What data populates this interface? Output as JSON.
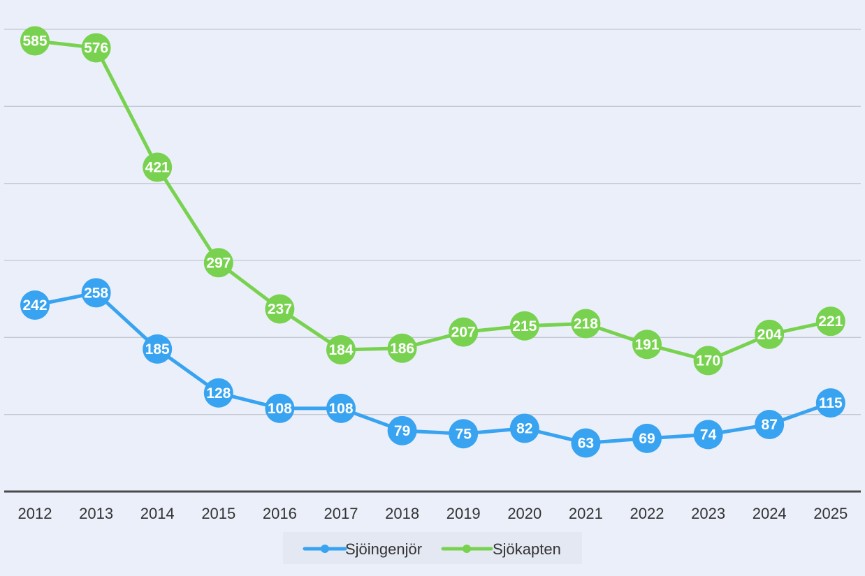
{
  "chart_data": {
    "type": "line",
    "title": "",
    "xlabel": "",
    "ylabel": "",
    "categories": [
      "2012",
      "2013",
      "2014",
      "2015",
      "2016",
      "2017",
      "2018",
      "2019",
      "2020",
      "2021",
      "2022",
      "2023",
      "2024",
      "2025"
    ],
    "ylim": [
      0,
      600
    ],
    "grid": true,
    "legend_position": "bottom",
    "series": [
      {
        "name": "Sjöingenjör",
        "color": "#38a3f0",
        "values": [
          242,
          258,
          185,
          128,
          108,
          108,
          79,
          75,
          82,
          63,
          69,
          74,
          87,
          115
        ]
      },
      {
        "name": "Sjökapten",
        "color": "#78d250",
        "values": [
          585,
          576,
          421,
          297,
          237,
          184,
          186,
          207,
          215,
          218,
          191,
          170,
          204,
          221
        ]
      }
    ]
  }
}
